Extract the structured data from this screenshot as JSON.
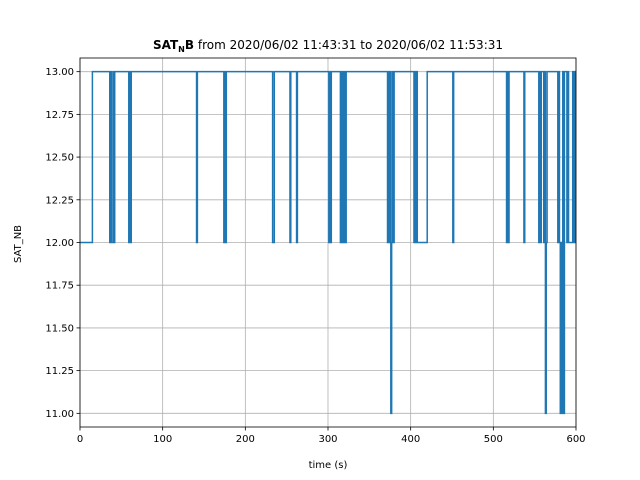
{
  "chart_data": {
    "type": "line",
    "title": {
      "bold_main": "SAT",
      "bold_sub": "N",
      "bold_tail": "B",
      "rest": " from 2020/06/02 11:43:31 to 2020/06/02 11:53:31"
    },
    "xlabel": "time (s)",
    "ylabel": "SAT_NB",
    "xlim": [
      0,
      600
    ],
    "ylim": [
      10.92,
      13.08
    ],
    "xticks": [
      0,
      100,
      200,
      300,
      400,
      500,
      600
    ],
    "yticks": [
      11.0,
      11.25,
      11.5,
      11.75,
      12.0,
      12.25,
      12.5,
      12.75,
      13.0
    ],
    "ytick_labels": [
      "11.00",
      "11.25",
      "11.50",
      "11.75",
      "12.00",
      "12.25",
      "12.50",
      "12.75",
      "13.00"
    ],
    "grid": true,
    "line_color": "#1f77b4",
    "x": [
      0,
      15,
      36,
      37,
      38,
      40,
      41,
      42,
      43,
      59,
      60,
      61,
      62,
      141,
      142,
      143,
      174,
      175,
      176,
      177,
      233,
      234,
      235,
      236,
      254,
      255,
      256,
      262,
      263,
      264,
      301,
      302,
      303,
      304,
      315,
      316,
      317,
      318,
      319,
      320,
      321,
      322,
      372,
      373,
      374,
      375,
      376,
      377,
      378,
      379,
      380,
      404,
      405,
      406,
      407,
      408,
      409,
      420,
      451,
      452,
      453,
      516,
      517,
      518,
      519,
      521,
      537,
      538,
      539,
      555,
      556,
      557,
      558,
      561,
      562,
      563,
      564,
      565,
      566,
      567,
      568,
      569,
      578,
      579,
      580,
      581,
      582,
      583,
      584,
      585,
      586,
      588,
      589,
      590,
      591,
      596,
      597,
      598,
      599
    ],
    "y": [
      12,
      13,
      12,
      13,
      12,
      13,
      12,
      13,
      13,
      12,
      13,
      12,
      13,
      12,
      13,
      13,
      12,
      13,
      12,
      13,
      12,
      12,
      13,
      13,
      12,
      13,
      13,
      12,
      13,
      13,
      12,
      13,
      12,
      13,
      12,
      13,
      12,
      13,
      12,
      13,
      12,
      13,
      12,
      13,
      12,
      13,
      11,
      12,
      13,
      12,
      13,
      12,
      13,
      12,
      13,
      12,
      12,
      13,
      12,
      13,
      13,
      12,
      13,
      12,
      13,
      13,
      12,
      13,
      13,
      12,
      13,
      12,
      13,
      12,
      13,
      11,
      12,
      13,
      13,
      13,
      13,
      13,
      12,
      13,
      12,
      11,
      12,
      11,
      13,
      11,
      13,
      13,
      12,
      13,
      12,
      13,
      12,
      13,
      12
    ]
  }
}
